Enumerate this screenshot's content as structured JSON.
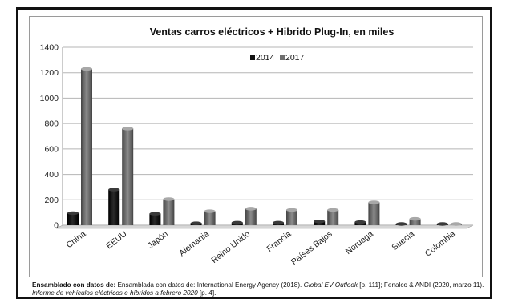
{
  "chart_data": {
    "type": "bar",
    "title": "Ventas carros eléctricos + Hibrido Plug-In, en miles",
    "categories": [
      "China",
      "EEUU",
      "Japón",
      "Alemania",
      "Reino Unido",
      "Francia",
      "Países Bajos",
      "Noruega",
      "Suecia",
      "Colombia"
    ],
    "series": [
      {
        "name": "2014",
        "values": [
          95,
          280,
          90,
          15,
          20,
          20,
          30,
          25,
          5,
          0.2
        ]
      },
      {
        "name": "2017",
        "values": [
          1230,
          760,
          205,
          110,
          130,
          120,
          120,
          180,
          50,
          1
        ]
      }
    ],
    "ylim": [
      0,
      1400
    ],
    "yticks": [
      0,
      200,
      400,
      600,
      800,
      1000,
      1200,
      1400
    ],
    "grid": true,
    "legend": "top-center",
    "colors": {
      "2014": "#111111",
      "2017": "#6e6e6e"
    }
  },
  "source": {
    "bold": "Ensamblado con datos de:",
    "part1": "Ensamblada con datos de: International Energy Agency (2018).",
    "ital1": "Global EV Outlook",
    "part2": "[p. 111]; Fenalco & ANDI (2020, marzo 11).",
    "ital2": "Informe de vehículos eléctricos e híbridos a febrero 2020",
    "part3": "[p. 4]."
  }
}
